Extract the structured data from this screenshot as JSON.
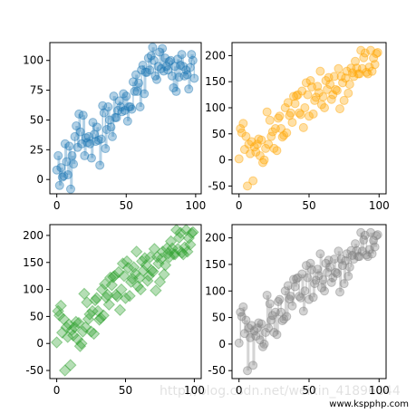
{
  "watermark": "http://blog.csdn.net/weixin_41896844",
  "site_label": "www.kspphp.com",
  "chart_data": [
    {
      "type": "scatter",
      "marker": "circle",
      "color": "#1f77b4",
      "show_vertical_lines": true,
      "xlim": [
        -5,
        104
      ],
      "ylim": [
        -12,
        115
      ],
      "x_ticks": [
        0,
        50,
        100
      ],
      "y_ticks": [
        0,
        25,
        50,
        75,
        100
      ],
      "x": [
        0,
        1,
        2,
        3,
        4,
        5,
        6,
        7,
        8,
        9,
        10,
        11,
        12,
        13,
        14,
        15,
        16,
        17,
        18,
        19,
        20,
        21,
        22,
        23,
        24,
        25,
        26,
        27,
        28,
        29,
        30,
        31,
        32,
        33,
        34,
        35,
        36,
        37,
        38,
        39,
        40,
        41,
        42,
        43,
        44,
        45,
        46,
        47,
        48,
        49,
        50,
        51,
        52,
        53,
        54,
        55,
        56,
        57,
        58,
        59,
        60,
        61,
        62,
        63,
        64,
        65,
        66,
        67,
        68,
        69,
        70,
        71,
        72,
        73,
        74,
        75,
        76,
        77,
        78,
        79,
        80,
        81,
        82,
        83,
        84,
        85,
        86,
        87,
        88,
        89,
        90,
        91,
        92,
        93,
        94,
        95,
        96,
        97,
        98,
        99
      ],
      "y": [
        8,
        20,
        -5,
        10,
        2,
        3,
        30,
        15,
        4,
        28,
        -8,
        20,
        13,
        36,
        45,
        27,
        55,
        40,
        30,
        54,
        20,
        35,
        31,
        36,
        30,
        18,
        48,
        38,
        32,
        44,
        33,
        12,
        34,
        62,
        56,
        26,
        42,
        61,
        50,
        44,
        36,
        70,
        52,
        52,
        58,
        66,
        61,
        57,
        72,
        58,
        70,
        49,
        61,
        61,
        59,
        82,
        74,
        88,
        74,
        81,
        61,
        92,
        96,
        72,
        90,
        90,
        102,
        92,
        104,
        111,
        100,
        87,
        84,
        95,
        107,
        93,
        110,
        91,
        102,
        95,
        92,
        99,
        100,
        87,
        77,
        95,
        74,
        101,
        86,
        96,
        105,
        95,
        87,
        92,
        88,
        76,
        94,
        105,
        100,
        85
      ]
    },
    {
      "type": "scatter",
      "marker": "circle",
      "color": "#ffa500",
      "show_vertical_lines": false,
      "xlim": [
        -5,
        105
      ],
      "ylim": [
        -65,
        225
      ],
      "x_ticks": [
        0,
        50,
        100
      ],
      "y_ticks": [
        -50,
        0,
        50,
        100,
        150,
        200
      ],
      "x": [
        0,
        1,
        2,
        3,
        4,
        5,
        6,
        7,
        8,
        9,
        10,
        11,
        12,
        13,
        14,
        15,
        16,
        17,
        18,
        19,
        20,
        21,
        22,
        23,
        24,
        25,
        26,
        27,
        28,
        29,
        30,
        31,
        32,
        33,
        34,
        35,
        36,
        37,
        38,
        39,
        40,
        41,
        42,
        43,
        44,
        45,
        46,
        47,
        48,
        49,
        50,
        51,
        52,
        53,
        54,
        55,
        56,
        57,
        58,
        59,
        60,
        61,
        62,
        63,
        64,
        65,
        66,
        67,
        68,
        69,
        70,
        71,
        72,
        73,
        74,
        75,
        76,
        77,
        78,
        79,
        80,
        81,
        82,
        83,
        84,
        85,
        86,
        87,
        88,
        89,
        90,
        91,
        92,
        93,
        94,
        95,
        96,
        97,
        98,
        99
      ],
      "y": [
        2,
        60,
        52,
        70,
        20,
        45,
        -50,
        30,
        12,
        35,
        -40,
        25,
        15,
        30,
        40,
        8,
        38,
        -5,
        0,
        22,
        92,
        30,
        76,
        45,
        54,
        22,
        60,
        18,
        80,
        84,
        60,
        44,
        47,
        100,
        52,
        110,
        85,
        90,
        72,
        122,
        108,
        123,
        125,
        90,
        87,
        132,
        62,
        100,
        148,
        125,
        84,
        152,
        140,
        88,
        114,
        120,
        141,
        129,
        170,
        106,
        121,
        100,
        152,
        135,
        158,
        145,
        116,
        125,
        160,
        135,
        133,
        175,
        98,
        160,
        148,
        114,
        157,
        170,
        128,
        145,
        176,
        167,
        160,
        189,
        176,
        165,
        165,
        210,
        175,
        196,
        205,
        168,
        165,
        178,
        210,
        170,
        195,
        183,
        204,
        206
      ]
    },
    {
      "type": "scatter",
      "marker": "diamond",
      "color": "#2ca02c",
      "show_vertical_lines": false,
      "xlim": [
        -5,
        105
      ],
      "ylim": [
        -65,
        220
      ],
      "x_ticks": [
        0,
        50,
        100
      ],
      "y_ticks": [
        -50,
        0,
        50,
        100,
        150,
        200
      ],
      "x": [
        0,
        1,
        2,
        3,
        4,
        5,
        6,
        7,
        8,
        9,
        10,
        11,
        12,
        13,
        14,
        15,
        16,
        17,
        18,
        19,
        20,
        21,
        22,
        23,
        24,
        25,
        26,
        27,
        28,
        29,
        30,
        31,
        32,
        33,
        34,
        35,
        36,
        37,
        38,
        39,
        40,
        41,
        42,
        43,
        44,
        45,
        46,
        47,
        48,
        49,
        50,
        51,
        52,
        53,
        54,
        55,
        56,
        57,
        58,
        59,
        60,
        61,
        62,
        63,
        64,
        65,
        66,
        67,
        68,
        69,
        70,
        71,
        72,
        73,
        74,
        75,
        76,
        77,
        78,
        79,
        80,
        81,
        82,
        83,
        84,
        85,
        86,
        87,
        88,
        89,
        90,
        91,
        92,
        93,
        94,
        95,
        96,
        97,
        98,
        99
      ],
      "y": [
        2,
        60,
        52,
        70,
        20,
        45,
        -50,
        30,
        12,
        35,
        -40,
        25,
        15,
        30,
        40,
        8,
        38,
        -5,
        0,
        22,
        92,
        30,
        76,
        45,
        54,
        22,
        60,
        18,
        80,
        84,
        60,
        44,
        47,
        100,
        52,
        110,
        85,
        90,
        72,
        122,
        108,
        123,
        125,
        90,
        87,
        132,
        62,
        100,
        148,
        125,
        84,
        152,
        140,
        88,
        114,
        120,
        141,
        129,
        170,
        106,
        121,
        100,
        152,
        135,
        158,
        145,
        116,
        125,
        160,
        135,
        133,
        175,
        98,
        160,
        148,
        114,
        157,
        170,
        128,
        145,
        176,
        167,
        160,
        189,
        176,
        165,
        165,
        210,
        175,
        196,
        205,
        168,
        165,
        178,
        210,
        170,
        195,
        183,
        204,
        206
      ]
    },
    {
      "type": "scatter",
      "marker": "circle",
      "color": "#808080",
      "show_vertical_lines": true,
      "xlim": [
        -5,
        105
      ],
      "ylim": [
        -65,
        225
      ],
      "x_ticks": [
        0,
        50,
        100
      ],
      "y_ticks": [
        -50,
        0,
        50,
        100,
        150,
        200
      ],
      "x": [
        0,
        1,
        2,
        3,
        4,
        5,
        6,
        7,
        8,
        9,
        10,
        11,
        12,
        13,
        14,
        15,
        16,
        17,
        18,
        19,
        20,
        21,
        22,
        23,
        24,
        25,
        26,
        27,
        28,
        29,
        30,
        31,
        32,
        33,
        34,
        35,
        36,
        37,
        38,
        39,
        40,
        41,
        42,
        43,
        44,
        45,
        46,
        47,
        48,
        49,
        50,
        51,
        52,
        53,
        54,
        55,
        56,
        57,
        58,
        59,
        60,
        61,
        62,
        63,
        64,
        65,
        66,
        67,
        68,
        69,
        70,
        71,
        72,
        73,
        74,
        75,
        76,
        77,
        78,
        79,
        80,
        81,
        82,
        83,
        84,
        85,
        86,
        87,
        88,
        89,
        90,
        91,
        92,
        93,
        94,
        95,
        96,
        97,
        98,
        99
      ],
      "y": [
        2,
        60,
        52,
        70,
        20,
        45,
        -50,
        30,
        12,
        35,
        -40,
        25,
        15,
        30,
        40,
        8,
        38,
        -5,
        0,
        22,
        92,
        30,
        76,
        45,
        54,
        22,
        60,
        18,
        80,
        84,
        60,
        44,
        47,
        100,
        52,
        110,
        85,
        90,
        72,
        122,
        108,
        123,
        125,
        90,
        87,
        132,
        62,
        100,
        148,
        125,
        84,
        152,
        140,
        88,
        114,
        120,
        141,
        129,
        170,
        106,
        121,
        100,
        152,
        135,
        158,
        145,
        116,
        125,
        160,
        135,
        133,
        175,
        98,
        160,
        148,
        114,
        157,
        170,
        128,
        145,
        176,
        167,
        160,
        189,
        176,
        165,
        165,
        210,
        175,
        196,
        205,
        168,
        165,
        178,
        210,
        170,
        195,
        183,
        204,
        206
      ]
    }
  ]
}
